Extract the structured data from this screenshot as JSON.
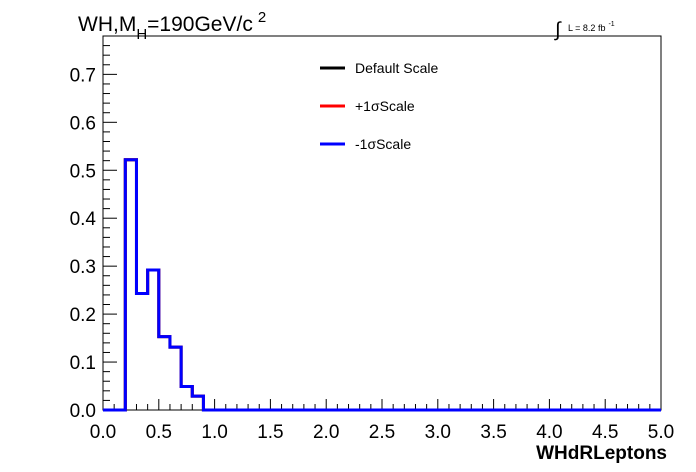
{
  "chart_data": {
    "type": "line",
    "title": {
      "main": "WH,M",
      "sub": "H",
      "rest": "=190GeV/c",
      "sup": "2"
    },
    "lumi": {
      "integral": "∫",
      "text": "L = 8.2 fb",
      "sup": "-1"
    },
    "xlabel": "WHdRLeptons",
    "ylabel": "",
    "xlim": [
      0.0,
      5.0
    ],
    "ylim": [
      0.0,
      0.78
    ],
    "x_ticks": [
      "0.0",
      "0.5",
      "1.0",
      "1.5",
      "2.0",
      "2.5",
      "3.0",
      "3.5",
      "4.0",
      "4.5",
      "5.0"
    ],
    "y_ticks": [
      "0.0",
      "0.1",
      "0.2",
      "0.3",
      "0.4",
      "0.5",
      "0.6",
      "0.7"
    ],
    "bin_edges": [
      0.0,
      0.1,
      0.2,
      0.3,
      0.4,
      0.5,
      0.6,
      0.7,
      0.8,
      0.9,
      1.0,
      1.1,
      1.2,
      1.3,
      1.4,
      1.5,
      1.6,
      1.7,
      1.8,
      1.9,
      2.0,
      2.1,
      2.2,
      2.3,
      2.4,
      2.5,
      2.6,
      2.7,
      2.8,
      2.9,
      3.0,
      3.1,
      3.2,
      3.3,
      3.4,
      3.5,
      3.6,
      3.7,
      3.8,
      3.9,
      4.0,
      4.1,
      4.2,
      4.3,
      4.4,
      4.5,
      4.6,
      4.7,
      4.8,
      4.9,
      5.0
    ],
    "legend_position": "top-center",
    "series": [
      {
        "name": "Default Scale",
        "color": "#000000",
        "values": [
          0,
          0,
          0.522,
          0.243,
          0.292,
          0.153,
          0.131,
          0.049,
          0.029,
          0,
          0,
          0,
          0,
          0,
          0,
          0,
          0,
          0,
          0,
          0,
          0,
          0,
          0,
          0,
          0,
          0,
          0,
          0,
          0,
          0,
          0,
          0,
          0,
          0,
          0,
          0,
          0,
          0,
          0,
          0,
          0,
          0,
          0,
          0,
          0,
          0,
          0,
          0,
          0,
          0
        ]
      },
      {
        "name": "+1σScale",
        "color": "#ff0000",
        "values": [
          0,
          0,
          0.522,
          0.243,
          0.292,
          0.153,
          0.131,
          0.049,
          0.029,
          0,
          0,
          0,
          0,
          0,
          0,
          0,
          0,
          0,
          0,
          0,
          0,
          0,
          0,
          0,
          0,
          0,
          0,
          0,
          0,
          0,
          0,
          0,
          0,
          0,
          0,
          0,
          0,
          0,
          0,
          0,
          0,
          0,
          0,
          0,
          0,
          0,
          0,
          0,
          0,
          0
        ]
      },
      {
        "name": "-1σScale",
        "color": "#0000ff",
        "values": [
          0,
          0,
          0.522,
          0.243,
          0.292,
          0.153,
          0.131,
          0.049,
          0.029,
          0,
          0,
          0,
          0,
          0,
          0,
          0,
          0,
          0,
          0,
          0,
          0,
          0,
          0,
          0,
          0,
          0,
          0,
          0,
          0,
          0,
          0,
          0,
          0,
          0,
          0,
          0,
          0,
          0,
          0,
          0,
          0,
          0,
          0,
          0,
          0,
          0,
          0,
          0,
          0,
          0
        ]
      }
    ]
  }
}
